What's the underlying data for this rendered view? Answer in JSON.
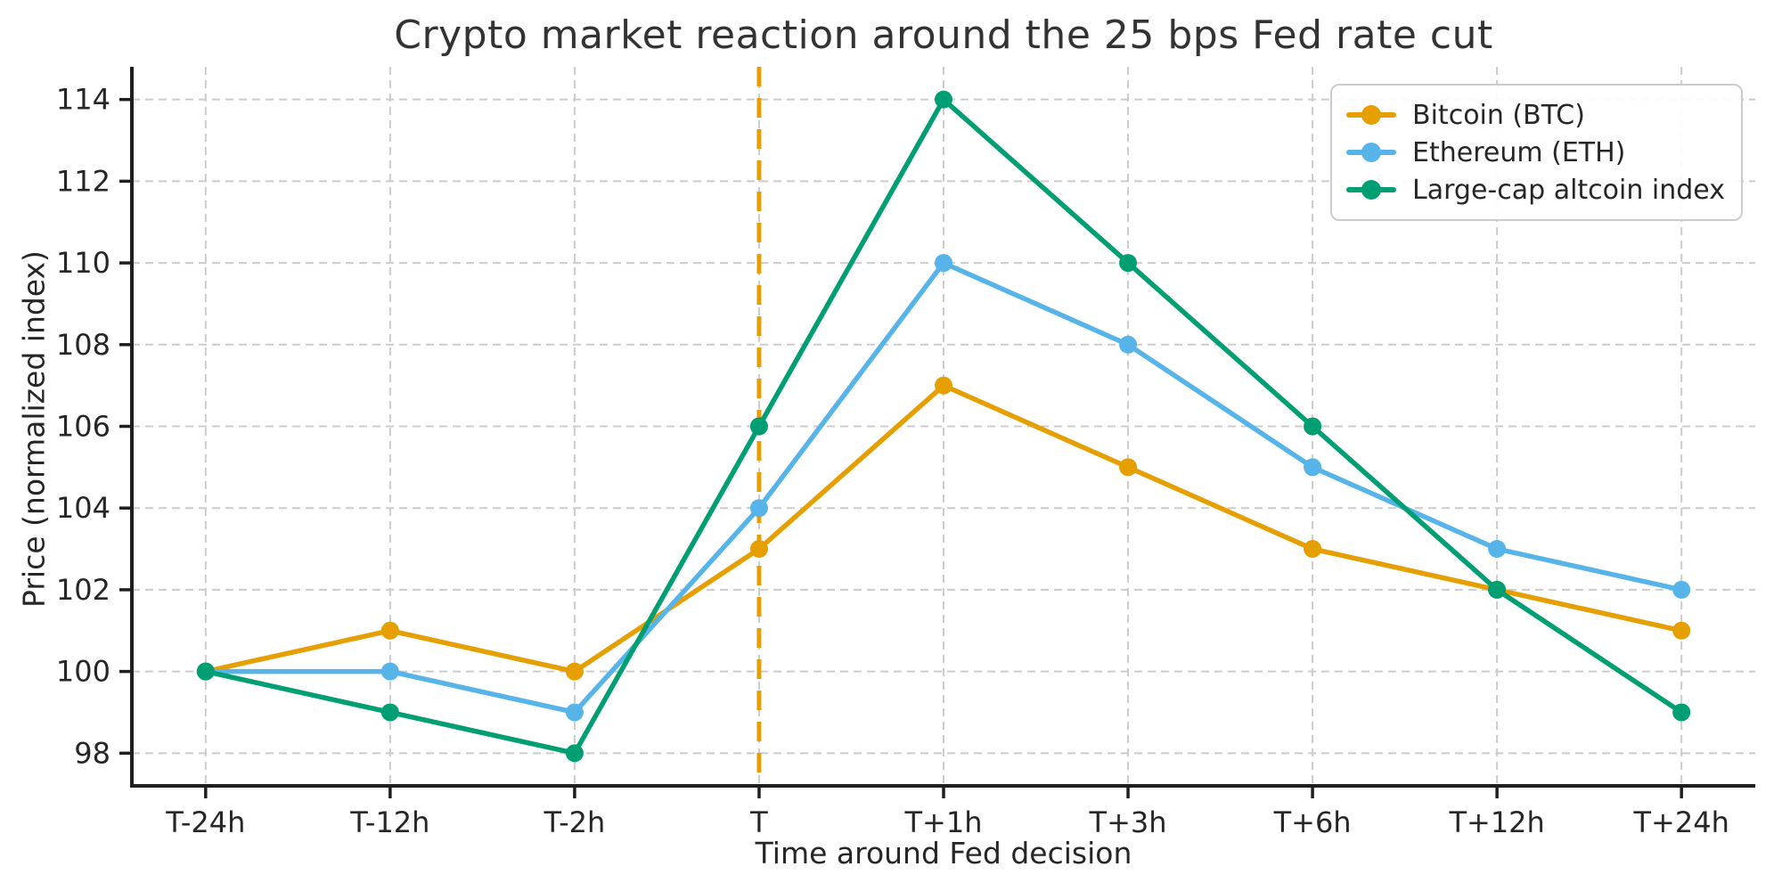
{
  "chart_data": {
    "type": "line",
    "title": "Crypto market reaction around the 25 bps Fed rate cut",
    "xlabel": "Time around Fed decision",
    "ylabel": "Price (normalized index)",
    "categories": [
      "T-24h",
      "T-12h",
      "T-2h",
      "T",
      "T+1h",
      "T+3h",
      "T+6h",
      "T+12h",
      "T+24h"
    ],
    "yticks": [
      98,
      100,
      102,
      104,
      106,
      108,
      110,
      112,
      114
    ],
    "ylim": [
      97.2,
      114.8
    ],
    "grid": true,
    "grid_style": "dashed",
    "legend_position": "upper right",
    "series": [
      {
        "name": "Bitcoin (BTC)",
        "color": "#E69F00",
        "values": [
          100,
          101,
          100,
          103,
          107,
          105,
          103,
          102,
          101
        ]
      },
      {
        "name": "Ethereum (ETH)",
        "color": "#56B4E9",
        "values": [
          100,
          100,
          99,
          104,
          110,
          108,
          105,
          103,
          102
        ]
      },
      {
        "name": "Large-cap altcoin index",
        "color": "#009E73",
        "values": [
          100,
          99,
          98,
          106,
          114,
          110,
          106,
          102,
          99
        ]
      }
    ],
    "event_line": {
      "x_category": "T",
      "color": "#E69F00",
      "style": "dashed"
    },
    "style": {
      "grid_color": "#cccccc",
      "axis_color": "#1f1f1f",
      "text_color": "#262626",
      "background": "#ffffff"
    }
  }
}
